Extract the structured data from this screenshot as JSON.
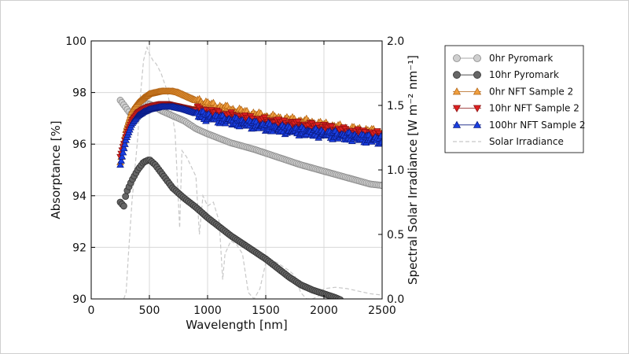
{
  "chart_data": {
    "type": "line",
    "xlabel": "Wavelength [nm]",
    "ylabel": "Absorptance [%]",
    "y2label": "Spectral Solar Irradiance",
    "y2label_units": "[W m⁻² nm⁻¹]",
    "xlim": [
      0,
      2500
    ],
    "ylim": [
      90,
      100
    ],
    "y2lim": [
      0.0,
      2.0
    ],
    "x_ticks": [
      "0",
      "500",
      "1000",
      "1500",
      "2000",
      "2500"
    ],
    "y_ticks": [
      "90",
      "92",
      "94",
      "96",
      "98",
      "100"
    ],
    "y2_ticks": [
      "0.0",
      "0.5",
      "1.0",
      "1.5",
      "2.0"
    ],
    "grid": true,
    "legend_position": "outside-right",
    "series": [
      {
        "name": "0hr Pyromark",
        "axis": "left",
        "marker": "circle",
        "color": "#cfcfcf",
        "edge": "#8a8a8a",
        "x": [
          250,
          300,
          350,
          400,
          450,
          500,
          550,
          600,
          700,
          800,
          900,
          1000,
          1200,
          1400,
          1600,
          1800,
          2000,
          2200,
          2400,
          2500
        ],
        "values": [
          97.7,
          97.4,
          97.1,
          97.45,
          97.6,
          97.55,
          97.45,
          97.3,
          97.1,
          96.9,
          96.6,
          96.4,
          96.05,
          95.8,
          95.5,
          95.2,
          94.95,
          94.7,
          94.45,
          94.4
        ]
      },
      {
        "name": "10hr Pyromark",
        "axis": "left",
        "marker": "circle",
        "color": "#666666",
        "edge": "#333333",
        "x": [
          250,
          280,
          300,
          350,
          400,
          450,
          500,
          550,
          600,
          700,
          800,
          900,
          1000,
          1100,
          1200,
          1300,
          1400,
          1500,
          1600,
          1700,
          1800,
          1900,
          2000,
          2100,
          2150
        ],
        "values": [
          93.75,
          93.6,
          94.1,
          94.6,
          95.0,
          95.3,
          95.4,
          95.2,
          94.9,
          94.3,
          93.9,
          93.55,
          93.15,
          92.8,
          92.45,
          92.15,
          91.85,
          91.55,
          91.2,
          90.85,
          90.55,
          90.35,
          90.2,
          90.05,
          89.95
        ]
      },
      {
        "name": "0hr NFT Sample 2",
        "axis": "left",
        "marker": "triangle-up",
        "color": "#f0a040",
        "edge": "#b06010",
        "x": [
          250,
          300,
          350,
          400,
          450,
          500,
          550,
          600,
          650,
          700,
          750,
          800,
          900,
          1000,
          1200,
          1400,
          1600,
          1800,
          2000,
          2200,
          2400,
          2500
        ],
        "values": [
          95.3,
          96.6,
          97.3,
          97.6,
          97.8,
          97.95,
          98.0,
          98.05,
          98.05,
          98.05,
          98.0,
          97.9,
          97.7,
          97.5,
          97.3,
          97.1,
          96.95,
          96.85,
          96.7,
          96.55,
          96.45,
          96.4
        ]
      },
      {
        "name": "10hr NFT Sample 2",
        "axis": "left",
        "marker": "triangle-down",
        "color": "#dd2020",
        "edge": "#881010",
        "x": [
          250,
          300,
          350,
          400,
          450,
          500,
          550,
          600,
          650,
          700,
          750,
          800,
          900,
          1000,
          1200,
          1400,
          1600,
          1800,
          2000,
          2200,
          2400,
          2500
        ],
        "values": [
          95.5,
          96.3,
          96.9,
          97.2,
          97.35,
          97.45,
          97.5,
          97.55,
          97.55,
          97.5,
          97.45,
          97.4,
          97.3,
          97.2,
          97.05,
          96.9,
          96.8,
          96.7,
          96.6,
          96.45,
          96.35,
          96.3
        ]
      },
      {
        "name": "100hr NFT Sample 2",
        "axis": "left",
        "marker": "triangle-up",
        "color": "#1a3fe0",
        "edge": "#0a1a80",
        "x": [
          250,
          300,
          350,
          400,
          450,
          500,
          550,
          600,
          650,
          700,
          750,
          800,
          900,
          1000,
          1200,
          1400,
          1600,
          1800,
          2000,
          2200,
          2400,
          2500
        ],
        "values": [
          95.2,
          96.2,
          96.8,
          97.1,
          97.25,
          97.35,
          97.4,
          97.45,
          97.45,
          97.45,
          97.4,
          97.35,
          97.2,
          97.05,
          96.9,
          96.75,
          96.6,
          96.5,
          96.4,
          96.3,
          96.2,
          96.15
        ]
      },
      {
        "name": "Solar Irradiance",
        "axis": "right",
        "marker": "none",
        "line": "dashed",
        "color": "#c8c8c8",
        "x": [
          280,
          300,
          320,
          350,
          380,
          400,
          420,
          450,
          480,
          500,
          530,
          560,
          600,
          650,
          690,
          720,
          760,
          780,
          820,
          900,
          930,
          960,
          1000,
          1050,
          1100,
          1130,
          1150,
          1200,
          1250,
          1300,
          1350,
          1400,
          1450,
          1500,
          1550,
          1600,
          1650,
          1700,
          1750,
          1800,
          1850,
          1900,
          1950,
          2000,
          2100,
          2200,
          2300,
          2400,
          2500
        ],
        "values": [
          0.0,
          0.05,
          0.35,
          0.75,
          1.05,
          1.25,
          1.55,
          1.85,
          1.95,
          1.9,
          1.85,
          1.82,
          1.75,
          1.62,
          1.45,
          1.3,
          0.55,
          1.15,
          1.1,
          0.95,
          0.5,
          0.8,
          0.72,
          0.75,
          0.6,
          0.15,
          0.35,
          0.45,
          0.42,
          0.35,
          0.05,
          0.0,
          0.08,
          0.28,
          0.3,
          0.28,
          0.25,
          0.22,
          0.18,
          0.05,
          0.0,
          0.0,
          0.02,
          0.08,
          0.09,
          0.08,
          0.06,
          0.04,
          0.03
        ]
      }
    ]
  }
}
